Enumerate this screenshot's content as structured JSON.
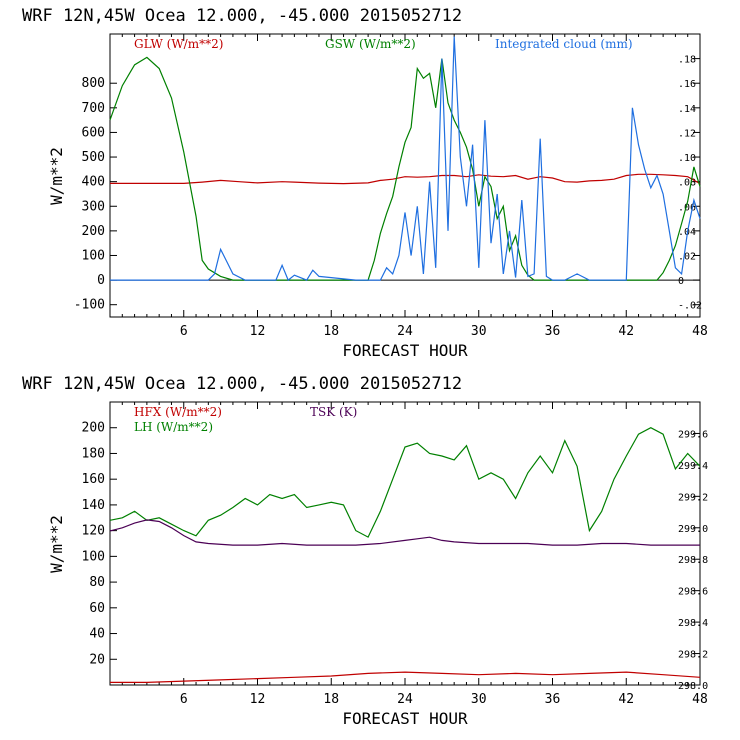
{
  "chart_data": [
    {
      "type": "line",
      "title": "WRF   12N,45W Ocea  12.000, -45.000  2015052712",
      "xlabel": "FORECAST HOUR",
      "ylabel": "W/m**2",
      "xlim": [
        0,
        48
      ],
      "ylim": [
        -150,
        1000
      ],
      "y2lim": [
        -0.03,
        0.2
      ],
      "xticks": [
        6,
        12,
        18,
        24,
        30,
        36,
        42,
        48
      ],
      "yticks": [
        -100,
        0,
        100,
        200,
        300,
        400,
        500,
        600,
        700,
        800
      ],
      "y2ticks": [
        -0.02,
        0,
        0.02,
        0.04,
        0.06,
        0.08,
        0.1,
        0.12,
        0.14,
        0.16,
        0.18
      ],
      "y2ticklabels": [
        "-.02",
        "0",
        ".02",
        ".04",
        ".06",
        ".08",
        ".10",
        ".12",
        ".14",
        ".16",
        ".18"
      ],
      "zero_line": true,
      "series": [
        {
          "name": "GLW (W/m**2)",
          "label": "GLW (W/m**2)",
          "color": "#c00000",
          "axis": "left",
          "x": [
            0,
            6,
            7.5,
            9,
            10.5,
            12,
            14,
            15,
            17,
            19,
            21,
            22,
            23,
            24,
            25,
            26,
            27,
            28,
            29,
            30,
            31,
            32,
            33,
            34,
            35,
            36,
            37,
            38,
            39,
            40,
            41,
            42,
            43,
            44,
            45,
            46,
            47,
            48
          ],
          "y": [
            393,
            393,
            398,
            405,
            400,
            395,
            400,
            398,
            394,
            392,
            395,
            405,
            410,
            420,
            418,
            420,
            425,
            425,
            420,
            428,
            422,
            420,
            425,
            410,
            420,
            415,
            400,
            398,
            403,
            405,
            410,
            425,
            430,
            430,
            428,
            425,
            420,
            392
          ]
        },
        {
          "name": "GSW (W/m**2)",
          "label": "GSW (W/m**2)",
          "color": "#008000",
          "axis": "left",
          "x": [
            0,
            1,
            2,
            3,
            4,
            5,
            6,
            7,
            7.5,
            8,
            9,
            10,
            21,
            21.5,
            22,
            22.5,
            23,
            23.5,
            24,
            24.5,
            25,
            25.5,
            26,
            26.5,
            27,
            27.5,
            28,
            28.5,
            29,
            29.5,
            30,
            30.5,
            31,
            31.5,
            32,
            32.5,
            33,
            33.5,
            34,
            34.5,
            35,
            44.5,
            45,
            45.5,
            46,
            46.5,
            47,
            47.5,
            48
          ],
          "y": [
            650,
            790,
            875,
            905,
            860,
            740,
            520,
            260,
            80,
            45,
            15,
            0,
            0,
            80,
            190,
            270,
            340,
            460,
            560,
            620,
            860,
            820,
            840,
            700,
            900,
            720,
            650,
            600,
            540,
            450,
            300,
            420,
            380,
            250,
            300,
            120,
            180,
            60,
            20,
            0,
            0,
            0,
            30,
            80,
            140,
            230,
            320,
            460,
            380
          ]
        },
        {
          "name": "Integrated cloud (mm)",
          "label": "Integrated cloud (mm)",
          "color": "#1f6fe0",
          "axis": "right",
          "x": [
            0,
            8,
            8.5,
            9,
            9.5,
            10,
            11,
            12,
            13.5,
            14,
            14.5,
            15,
            16,
            16.5,
            17,
            18,
            19,
            20,
            21,
            22,
            22.5,
            23,
            23.5,
            24,
            24.5,
            25,
            25.5,
            26,
            26.5,
            27,
            27.5,
            28,
            28.5,
            29,
            29.5,
            30,
            30.5,
            31,
            31.5,
            32,
            32.5,
            33,
            33.5,
            34,
            34.5,
            35,
            35.5,
            36,
            37,
            38,
            39,
            40,
            41,
            42,
            42.5,
            43,
            43.5,
            44,
            44.5,
            45,
            45.5,
            46,
            46.5,
            47,
            47.5,
            48
          ],
          "y": [
            0,
            0,
            0.005,
            0.025,
            0.015,
            0.005,
            0,
            0,
            0,
            0.012,
            0,
            0.004,
            0,
            0.008,
            0.003,
            0.002,
            0.001,
            0,
            0,
            0,
            0.01,
            0.005,
            0.02,
            0.055,
            0.02,
            0.06,
            0.005,
            0.08,
            0.01,
            0.18,
            0.04,
            0.198,
            0.1,
            0.06,
            0.11,
            0.01,
            0.13,
            0.03,
            0.07,
            0.005,
            0.04,
            0.002,
            0.065,
            0.003,
            0.005,
            0.115,
            0.003,
            0,
            0,
            0.005,
            0,
            0,
            0,
            0,
            0.14,
            0.11,
            0.09,
            0.075,
            0.085,
            0.07,
            0.04,
            0.01,
            0.005,
            0.04,
            0.065,
            0.05
          ]
        }
      ]
    },
    {
      "type": "line",
      "title": "WRF   12N,45W Ocea  12.000, -45.000  2015052712",
      "xlabel": "FORECAST HOUR",
      "ylabel": "W/m**2",
      "xlim": [
        0,
        48
      ],
      "ylim": [
        0,
        220
      ],
      "y2lim": [
        298.0,
        299.8
      ],
      "xticks": [
        6,
        12,
        18,
        24,
        30,
        36,
        42,
        48
      ],
      "yticks": [
        20,
        40,
        60,
        80,
        100,
        120,
        140,
        160,
        180,
        200
      ],
      "y2ticks": [
        298.0,
        298.2,
        298.4,
        298.6,
        298.8,
        299.0,
        299.2,
        299.4,
        299.6
      ],
      "y2ticklabels": [
        "298.0",
        "298.2",
        "298.4",
        "298.6",
        "298.8",
        "299.0",
        "299.2",
        "299.4",
        "299.6"
      ],
      "zero_line": false,
      "series": [
        {
          "name": "HFX (W/m**2)",
          "label": "HFX (W/m**2)",
          "color": "#c00000",
          "axis": "left",
          "x": [
            0,
            3,
            6,
            9,
            12,
            15,
            18,
            21,
            24,
            27,
            30,
            33,
            36,
            39,
            42,
            45,
            48
          ],
          "y": [
            2,
            2,
            3,
            4,
            5,
            6,
            7,
            9,
            10,
            9,
            8,
            9,
            8,
            9,
            10,
            8,
            6
          ]
        },
        {
          "name": "LH (W/m**2)",
          "label": "LH (W/m**2)",
          "color": "#008000",
          "axis": "left",
          "x": [
            0,
            1,
            2,
            3,
            4,
            5,
            6,
            7,
            8,
            9,
            10,
            11,
            12,
            13,
            14,
            15,
            16,
            17,
            18,
            19,
            20,
            21,
            22,
            23,
            24,
            25,
            26,
            27,
            28,
            29,
            30,
            31,
            32,
            33,
            34,
            35,
            36,
            37,
            38,
            39,
            40,
            41,
            42,
            43,
            44,
            45,
            46,
            47,
            48
          ],
          "y": [
            128,
            130,
            135,
            128,
            130,
            125,
            120,
            116,
            128,
            132,
            138,
            145,
            140,
            148,
            145,
            148,
            138,
            140,
            142,
            140,
            120,
            115,
            135,
            160,
            185,
            188,
            180,
            178,
            175,
            186,
            160,
            165,
            160,
            145,
            165,
            178,
            165,
            190,
            170,
            120,
            135,
            160,
            178,
            195,
            200,
            195,
            168,
            180,
            170
          ]
        },
        {
          "name": "TSK (K)",
          "label": "TSK (K)",
          "color": "#4b0055",
          "axis": "right",
          "x": [
            0,
            1,
            2,
            3,
            4,
            5,
            6,
            7,
            8,
            10,
            12,
            14,
            16,
            18,
            20,
            22,
            24,
            25,
            26,
            27,
            28,
            30,
            32,
            34,
            36,
            38,
            40,
            42,
            44,
            46,
            48
          ],
          "y": [
            298.98,
            299.0,
            299.03,
            299.05,
            299.04,
            299.0,
            298.95,
            298.91,
            298.9,
            298.89,
            298.89,
            298.9,
            298.89,
            298.89,
            298.89,
            298.9,
            298.92,
            298.93,
            298.94,
            298.92,
            298.91,
            298.9,
            298.9,
            298.9,
            298.89,
            298.89,
            298.9,
            298.9,
            298.89,
            298.89,
            298.89
          ]
        }
      ]
    }
  ]
}
